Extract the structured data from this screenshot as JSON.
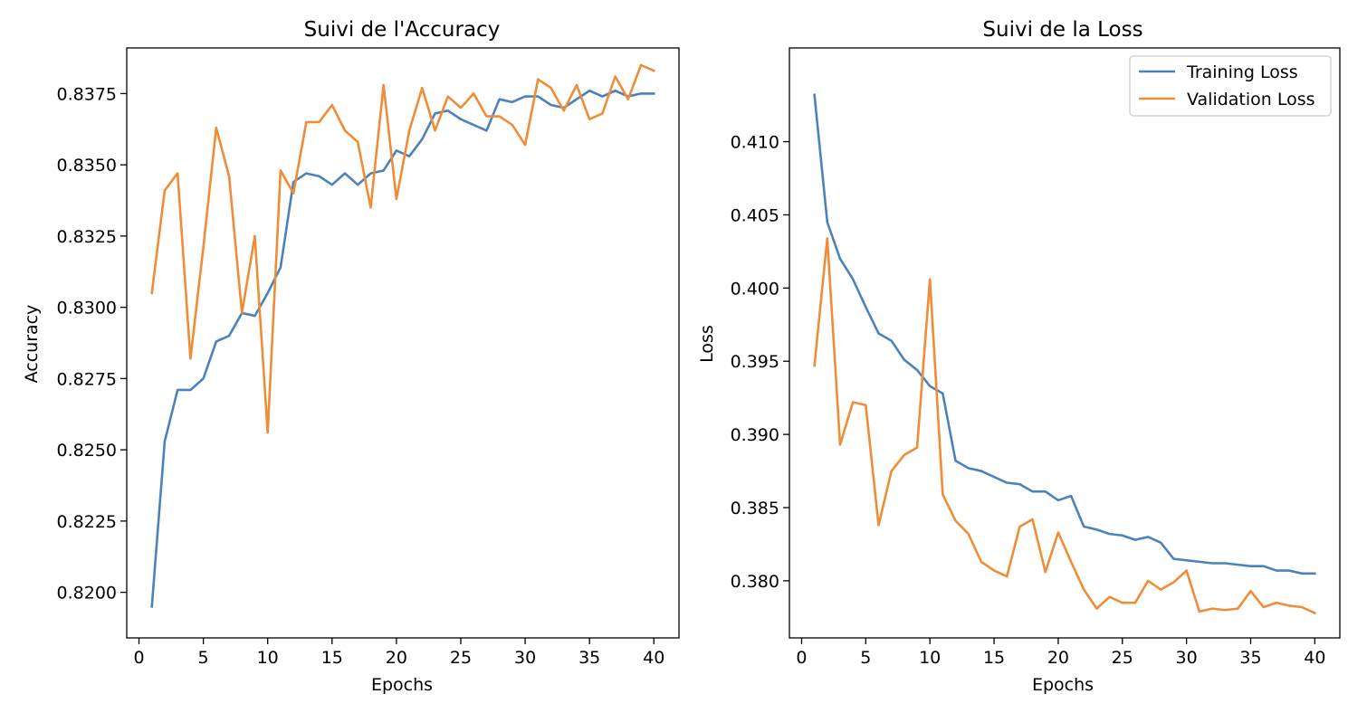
{
  "colors": {
    "training": "#4c82bc",
    "validation": "#ef8c36"
  },
  "chart_data": [
    {
      "type": "line",
      "title": "Suivi de l'Accuracy",
      "xlabel": "Epochs",
      "ylabel": "Accuracy",
      "xlim": [
        -0.95,
        41.95
      ],
      "ylim": [
        0.8184,
        0.8391
      ],
      "xticks": [
        0,
        5,
        10,
        15,
        20,
        25,
        30,
        35,
        40
      ],
      "yticks": [
        0.82,
        0.8225,
        0.825,
        0.8275,
        0.83,
        0.8325,
        0.835,
        0.8375
      ],
      "ytick_labels": [
        "0.8200",
        "0.8225",
        "0.8250",
        "0.8275",
        "0.8300",
        "0.8325",
        "0.8350",
        "0.8375"
      ],
      "legend": false,
      "x": [
        1,
        2,
        3,
        4,
        5,
        6,
        7,
        8,
        9,
        10,
        11,
        12,
        13,
        14,
        15,
        16,
        17,
        18,
        19,
        20,
        21,
        22,
        23,
        24,
        25,
        26,
        27,
        28,
        29,
        30,
        31,
        32,
        33,
        34,
        35,
        36,
        37,
        38,
        39,
        40
      ],
      "series": [
        {
          "key": "training",
          "values": [
            0.8195,
            0.8253,
            0.8271,
            0.8271,
            0.8275,
            0.8288,
            0.829,
            0.8298,
            0.8297,
            0.8305,
            0.8314,
            0.8344,
            0.8347,
            0.8346,
            0.8343,
            0.8347,
            0.8343,
            0.8347,
            0.8348,
            0.8355,
            0.8353,
            0.8359,
            0.8368,
            0.8369,
            0.8366,
            0.8364,
            0.8362,
            0.8373,
            0.8372,
            0.8374,
            0.8374,
            0.8371,
            0.837,
            0.8373,
            0.8376,
            0.8374,
            0.8376,
            0.8374,
            0.8375,
            0.8375
          ]
        },
        {
          "key": "validation",
          "values": [
            0.8305,
            0.8341,
            0.8347,
            0.8282,
            0.8321,
            0.8363,
            0.8346,
            0.8298,
            0.8325,
            0.8256,
            0.8348,
            0.834,
            0.8365,
            0.8365,
            0.8371,
            0.8362,
            0.8358,
            0.8335,
            0.8378,
            0.8338,
            0.8362,
            0.8377,
            0.8362,
            0.8374,
            0.837,
            0.8375,
            0.8367,
            0.8367,
            0.8364,
            0.8357,
            0.838,
            0.8377,
            0.8369,
            0.8378,
            0.8366,
            0.8368,
            0.8381,
            0.8373,
            0.8385,
            0.8383
          ]
        }
      ]
    },
    {
      "type": "line",
      "title": "Suivi de la Loss",
      "xlabel": "Epochs",
      "ylabel": "Loss",
      "xlim": [
        -0.95,
        41.95
      ],
      "ylim": [
        0.3761,
        0.4164
      ],
      "xticks": [
        0,
        5,
        10,
        15,
        20,
        25,
        30,
        35,
        40
      ],
      "yticks": [
        0.38,
        0.385,
        0.39,
        0.395,
        0.4,
        0.405,
        0.41
      ],
      "ytick_labels": [
        "0.380",
        "0.385",
        "0.390",
        "0.395",
        "0.400",
        "0.405",
        "0.410"
      ],
      "legend": true,
      "legend_loc": "top-right",
      "x": [
        1,
        2,
        3,
        4,
        5,
        6,
        7,
        8,
        9,
        10,
        11,
        12,
        13,
        14,
        15,
        16,
        17,
        18,
        19,
        20,
        21,
        22,
        23,
        24,
        25,
        26,
        27,
        28,
        29,
        30,
        31,
        32,
        33,
        34,
        35,
        36,
        37,
        38,
        39,
        40
      ],
      "series": [
        {
          "key": "training",
          "name": "Training Loss",
          "values": [
            0.4132,
            0.4045,
            0.402,
            0.4006,
            0.3987,
            0.3969,
            0.3964,
            0.3951,
            0.3944,
            0.3933,
            0.3928,
            0.3882,
            0.3877,
            0.3875,
            0.3871,
            0.3867,
            0.3866,
            0.3861,
            0.3861,
            0.3855,
            0.3858,
            0.3837,
            0.3835,
            0.3832,
            0.3831,
            0.3828,
            0.383,
            0.3826,
            0.3815,
            0.3814,
            0.3813,
            0.3812,
            0.3812,
            0.3811,
            0.381,
            0.381,
            0.3807,
            0.3807,
            0.3805,
            0.3805
          ]
        },
        {
          "key": "validation",
          "name": "Validation Loss",
          "values": [
            0.3947,
            0.4034,
            0.3893,
            0.3922,
            0.392,
            0.3838,
            0.3875,
            0.3886,
            0.3891,
            0.4006,
            0.3859,
            0.3841,
            0.3832,
            0.3813,
            0.3807,
            0.3803,
            0.3837,
            0.3842,
            0.3806,
            0.3833,
            0.3813,
            0.3794,
            0.3781,
            0.3789,
            0.3785,
            0.3785,
            0.38,
            0.3794,
            0.3799,
            0.3807,
            0.3779,
            0.3781,
            0.378,
            0.3781,
            0.3793,
            0.3782,
            0.3785,
            0.3783,
            0.3782,
            0.3778
          ]
        }
      ]
    }
  ]
}
